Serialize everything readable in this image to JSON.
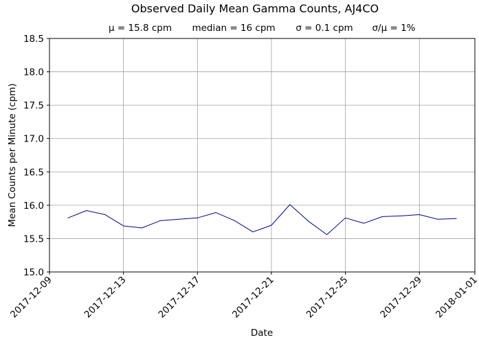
{
  "chart_data": {
    "type": "line",
    "title": "Observed Daily Mean Gamma Counts, AJ4CO",
    "stats": [
      "μ = 15.8 cpm",
      "median = 16 cpm",
      "σ = 0.1 cpm",
      "σ/μ = 1%"
    ],
    "xlabel": "Date",
    "ylabel": "Mean Counts per Minute (cpm)",
    "x_tick_labels": [
      "2017-12-09",
      "2017-12-13",
      "2017-12-17",
      "2017-12-21",
      "2017-12-25",
      "2017-12-29",
      "2018-01-01"
    ],
    "y_tick_labels": [
      "15.0",
      "15.5",
      "16.0",
      "16.5",
      "17.0",
      "17.5",
      "18.0",
      "18.5"
    ],
    "xlim": [
      "2017-12-09",
      "2018-01-01"
    ],
    "ylim": [
      15.0,
      18.5
    ],
    "grid": true,
    "line_color": "#00008b",
    "series": [
      {
        "x": [
          "2017-12-10",
          "2017-12-11",
          "2017-12-12",
          "2017-12-13",
          "2017-12-14",
          "2017-12-15",
          "2017-12-16",
          "2017-12-17",
          "2017-12-18",
          "2017-12-19",
          "2017-12-20",
          "2017-12-21",
          "2017-12-22",
          "2017-12-23",
          "2017-12-24",
          "2017-12-25",
          "2017-12-26",
          "2017-12-27",
          "2017-12-28",
          "2017-12-29",
          "2017-12-30",
          "2017-12-31"
        ],
        "values": [
          15.81,
          15.92,
          15.86,
          15.69,
          15.66,
          15.77,
          15.79,
          15.81,
          15.89,
          15.77,
          15.6,
          15.7,
          16.01,
          15.76,
          15.56,
          15.81,
          15.73,
          15.83,
          15.84,
          15.86,
          15.79,
          15.8
        ]
      }
    ]
  }
}
